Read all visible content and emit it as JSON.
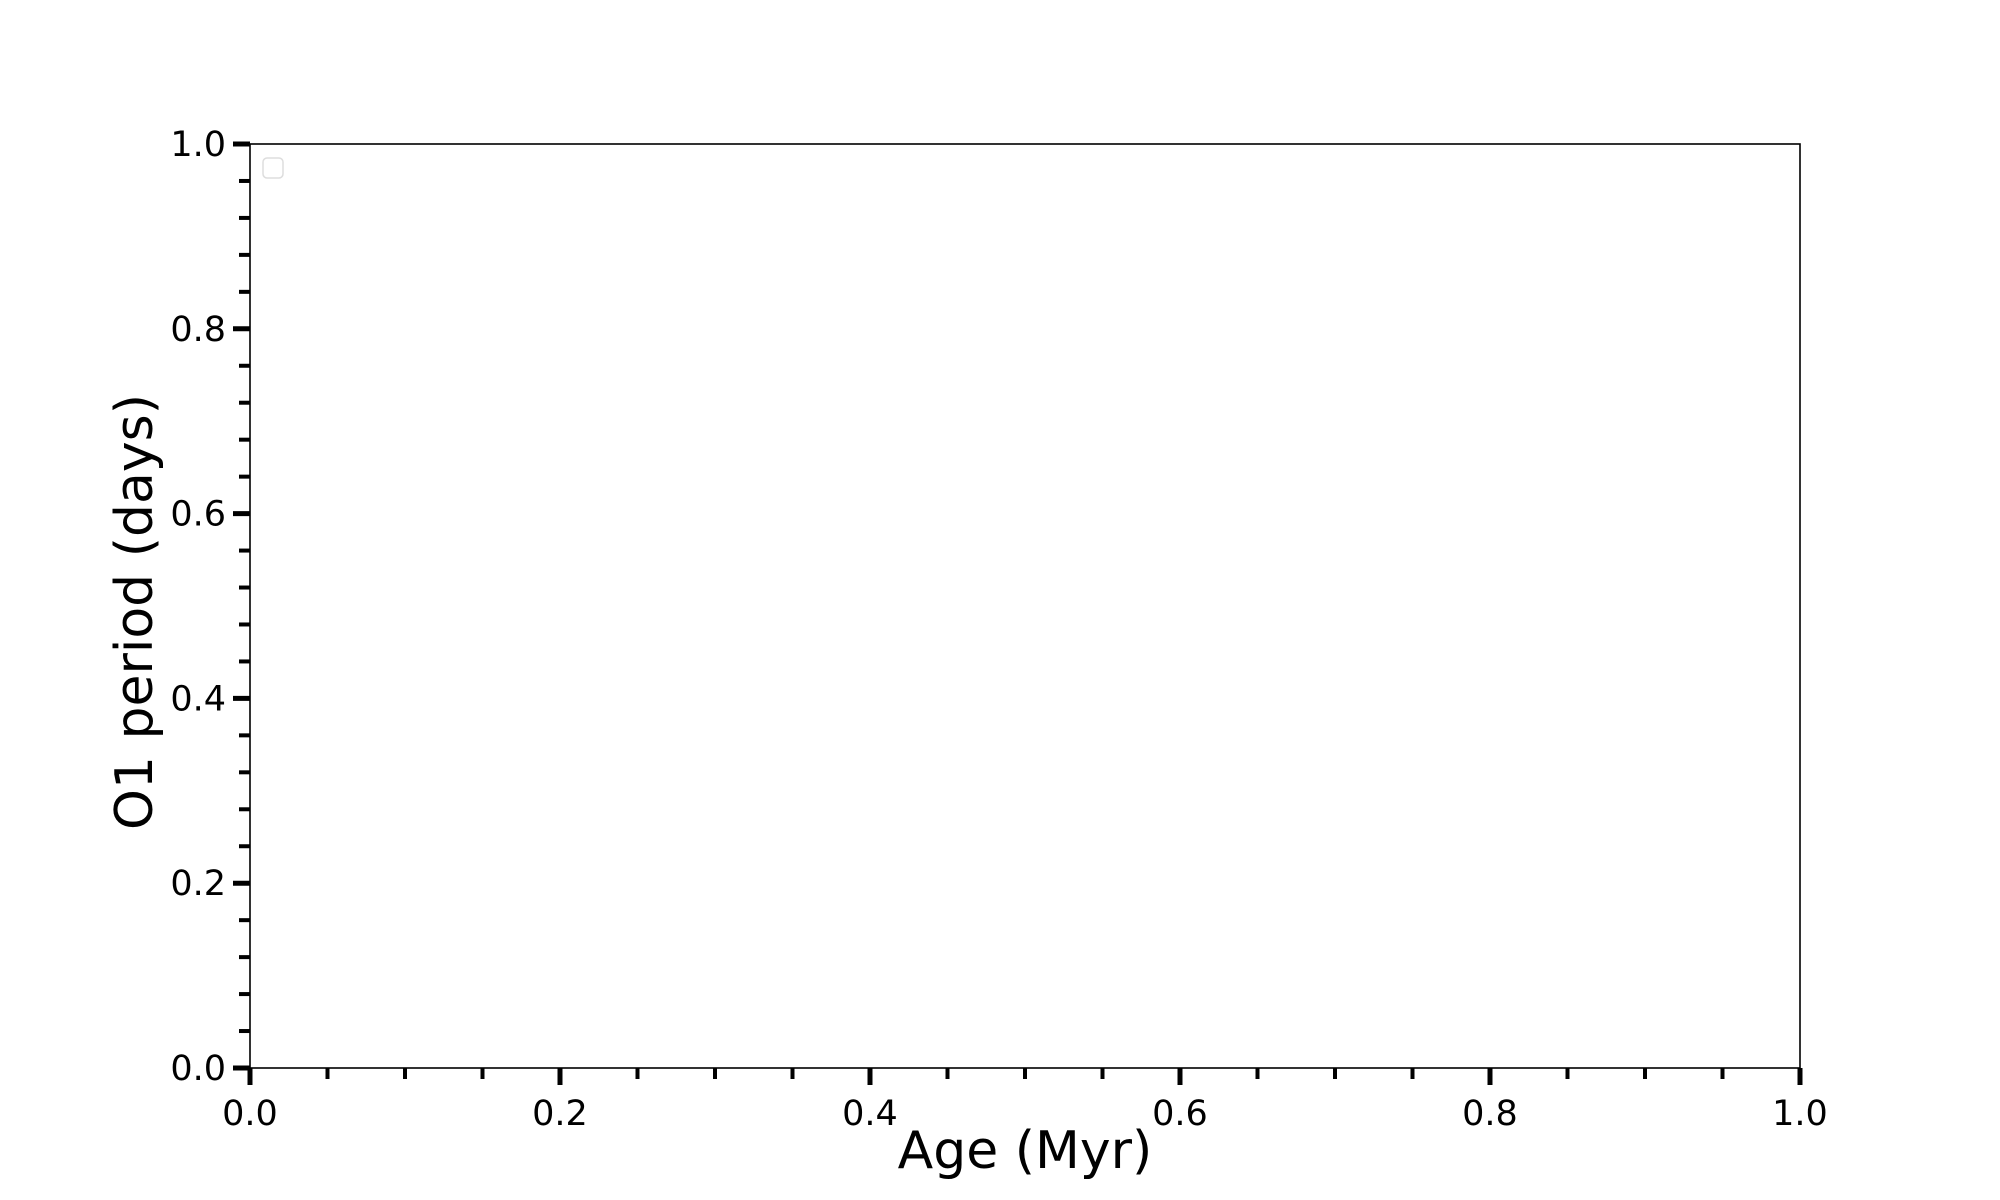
{
  "chart_data": {
    "type": "line",
    "title": "",
    "xlabel": "Age (Myr)",
    "ylabel": "O1 period (days)",
    "xlim": [
      0.0,
      1.0
    ],
    "ylim": [
      0.0,
      1.0
    ],
    "xticks": [
      "0.0",
      "0.2",
      "0.4",
      "0.6",
      "0.8",
      "1.0"
    ],
    "yticks": [
      "0.0",
      "0.2",
      "0.4",
      "0.6",
      "0.8",
      "1.0"
    ],
    "x_minor_step": 0.05,
    "y_minor_step": 0.04,
    "grid": false,
    "legend": {
      "placement": "upper-left",
      "entries": []
    },
    "series": []
  }
}
